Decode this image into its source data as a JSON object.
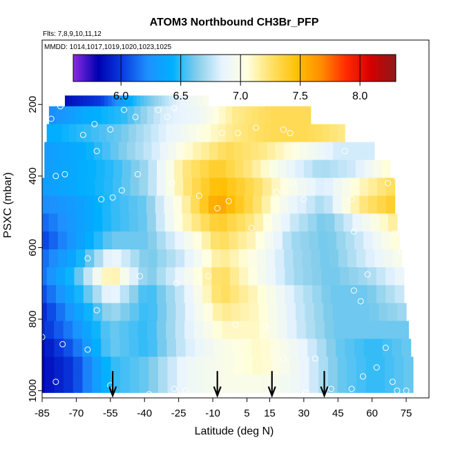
{
  "chart_data": {
    "type": "heatmap",
    "title": "ATOM3 Northbound CH3Br_PFP",
    "subtitle_flights": "Flts: 7,8,9,10,11,12",
    "subtitle_dates": "MMDD: 1014,1017,1019,1020,1023,1025",
    "xlabel": "Latitude (deg N)",
    "ylabel": "PSXC (mbar)",
    "xlim": [
      -85,
      85
    ],
    "ylim": [
      1020,
      20
    ],
    "x_ticks": [
      -85,
      -70,
      -55,
      -40,
      -25,
      -10,
      5,
      15,
      30,
      45,
      60,
      75
    ],
    "y_ticks": [
      200,
      400,
      600,
      800,
      1000
    ],
    "colorbar": {
      "range": [
        5.6,
        8.3
      ],
      "ticks": [
        "6.0",
        "6.5",
        "7.0",
        "7.5",
        "8.0"
      ],
      "colors": [
        "#8a2be2",
        "#0000b0",
        "#0a3ee0",
        "#1e90ff",
        "#00b0ff",
        "#87ceeb",
        "#e8f4ff",
        "#ffffe0",
        "#ffe066",
        "#ffc107",
        "#ff8c00",
        "#ff2a00",
        "#d40000",
        "#8b1a1a"
      ]
    },
    "layers": [
      {
        "p": 200,
        "lat_start": -75,
        "lat_end": -12,
        "values": [
          5.85,
          6.0,
          6.5,
          6.8,
          7.0
        ]
      },
      {
        "p": 230,
        "lat_start": -82,
        "lat_end": 33,
        "values": [
          6.2,
          6.4,
          6.5,
          6.8,
          6.9,
          7.2,
          7.3,
          7.3
        ]
      },
      {
        "p": 280,
        "lat_start": -83,
        "lat_end": 48,
        "values": [
          6.4,
          6.5,
          6.6,
          6.8,
          7.0,
          7.2,
          7.3,
          7.3,
          7.2
        ]
      },
      {
        "p": 330,
        "lat_start": -84,
        "lat_end": 61,
        "values": [
          6.3,
          6.4,
          6.6,
          6.8,
          7.1,
          7.3,
          7.2,
          7.0,
          6.8,
          6.8
        ]
      },
      {
        "p": 380,
        "lat_start": -84,
        "lat_end": 68,
        "values": [
          6.3,
          6.4,
          6.5,
          6.7,
          7.2,
          7.4,
          7.2,
          6.9,
          6.7,
          6.8,
          7.1
        ]
      },
      {
        "p": 430,
        "lat_start": -85,
        "lat_end": 70,
        "values": [
          6.3,
          6.4,
          6.5,
          6.7,
          7.2,
          7.5,
          7.3,
          7.0,
          6.8,
          7.1,
          7.3
        ]
      },
      {
        "p": 480,
        "lat_start": -86,
        "lat_end": 70,
        "values": [
          6.2,
          6.3,
          6.5,
          6.6,
          7.1,
          7.6,
          7.3,
          6.9,
          6.7,
          7.2,
          7.4
        ]
      },
      {
        "p": 530,
        "lat_start": -86,
        "lat_end": 71,
        "values": [
          6.1,
          6.3,
          6.5,
          6.6,
          7.1,
          7.4,
          7.2,
          6.8,
          6.6,
          6.9,
          7.2
        ]
      },
      {
        "p": 580,
        "lat_start": -86,
        "lat_end": 72,
        "values": [
          6.0,
          6.3,
          6.6,
          6.6,
          6.9,
          7.3,
          7.1,
          6.7,
          6.6,
          6.8,
          7.1
        ]
      },
      {
        "p": 630,
        "lat_start": -86,
        "lat_end": 73,
        "values": [
          6.1,
          6.4,
          6.9,
          6.6,
          6.8,
          7.2,
          7.0,
          6.7,
          6.6,
          6.8,
          7.0
        ]
      },
      {
        "p": 680,
        "lat_start": -87,
        "lat_end": 74,
        "values": [
          6.1,
          6.5,
          7.2,
          6.6,
          6.9,
          7.3,
          7.0,
          6.7,
          6.6,
          6.7,
          6.9
        ]
      },
      {
        "p": 730,
        "lat_start": -87,
        "lat_end": 74,
        "values": [
          6.0,
          6.4,
          6.9,
          6.5,
          6.8,
          7.3,
          7.1,
          6.8,
          6.6,
          6.6,
          6.8
        ]
      },
      {
        "p": 780,
        "lat_start": -87,
        "lat_end": 75,
        "values": [
          5.9,
          6.3,
          6.7,
          6.5,
          6.8,
          7.2,
          7.1,
          6.8,
          6.6,
          6.6,
          6.7
        ]
      },
      {
        "p": 830,
        "lat_start": -88,
        "lat_end": 76,
        "values": [
          5.9,
          6.2,
          6.6,
          6.5,
          6.8,
          7.1,
          7.1,
          6.8,
          6.6,
          6.6,
          6.6
        ]
      },
      {
        "p": 880,
        "lat_start": -88,
        "lat_end": 77,
        "values": [
          5.8,
          6.1,
          6.6,
          6.5,
          6.8,
          7.0,
          7.1,
          6.9,
          6.6,
          6.5,
          6.6
        ]
      },
      {
        "p": 930,
        "lat_start": -88,
        "lat_end": 78,
        "values": [
          5.8,
          6.0,
          6.5,
          6.6,
          6.9,
          7.0,
          7.1,
          6.9,
          6.6,
          6.5,
          6.6
        ]
      },
      {
        "p": 980,
        "lat_start": -88,
        "lat_end": 78,
        "values": [
          5.8,
          6.0,
          6.5,
          6.6,
          6.9,
          7.0,
          7.0,
          6.9,
          6.6,
          6.5,
          6.6
        ]
      }
    ],
    "sample_points": [
      [
        -77,
        205
      ],
      [
        -49,
        215
      ],
      [
        -34,
        215
      ],
      [
        -27,
        210
      ],
      [
        -81,
        240
      ],
      [
        -62,
        255
      ],
      [
        -44,
        235
      ],
      [
        -30,
        235
      ],
      [
        -67,
        285
      ],
      [
        -55,
        270
      ],
      [
        -6,
        280
      ],
      [
        1,
        280
      ],
      [
        9,
        265
      ],
      [
        21,
        270
      ],
      [
        24,
        280
      ],
      [
        -87,
        330
      ],
      [
        -61,
        330
      ],
      [
        48,
        330
      ],
      [
        68,
        325
      ],
      [
        -79,
        400
      ],
      [
        -75,
        395
      ],
      [
        -43,
        395
      ],
      [
        67,
        420
      ],
      [
        71,
        405
      ],
      [
        79,
        425
      ],
      [
        -28,
        420
      ],
      [
        -59,
        465
      ],
      [
        -54,
        460
      ],
      [
        -50,
        440
      ],
      [
        -16,
        455
      ],
      [
        18,
        445
      ],
      [
        25,
        420
      ],
      [
        30,
        465
      ],
      [
        51,
        465
      ],
      [
        -8,
        490
      ],
      [
        -3,
        470
      ],
      [
        73,
        490
      ],
      [
        7,
        545
      ],
      [
        52,
        555
      ],
      [
        70,
        560
      ],
      [
        76,
        580
      ],
      [
        73,
        610
      ],
      [
        -65,
        630
      ],
      [
        -42,
        680
      ],
      [
        -26,
        700
      ],
      [
        -12,
        680
      ],
      [
        58,
        675
      ],
      [
        52,
        720
      ],
      [
        55,
        750
      ],
      [
        -61,
        775
      ],
      [
        0,
        815
      ],
      [
        13,
        820
      ],
      [
        -85,
        850
      ],
      [
        -76,
        870
      ],
      [
        -65,
        885
      ],
      [
        21,
        910
      ],
      [
        35,
        910
      ],
      [
        66,
        880
      ],
      [
        62,
        935
      ],
      [
        56,
        960
      ],
      [
        69,
        975
      ],
      [
        81,
        985
      ],
      [
        -79,
        975
      ],
      [
        -88,
        995
      ],
      [
        -55,
        985
      ],
      [
        -22,
        1000
      ],
      [
        -27,
        995
      ],
      [
        -38,
        1010
      ],
      [
        -9,
        1010
      ],
      [
        -2,
        1010
      ],
      [
        15,
        1005
      ],
      [
        31,
        1005
      ],
      [
        42,
        995
      ],
      [
        51,
        995
      ],
      [
        71,
        1000
      ],
      [
        75,
        1000
      ],
      [
        80,
        1005
      ]
    ],
    "arrows_lat": [
      -54,
      -8,
      16,
      39
    ]
  }
}
